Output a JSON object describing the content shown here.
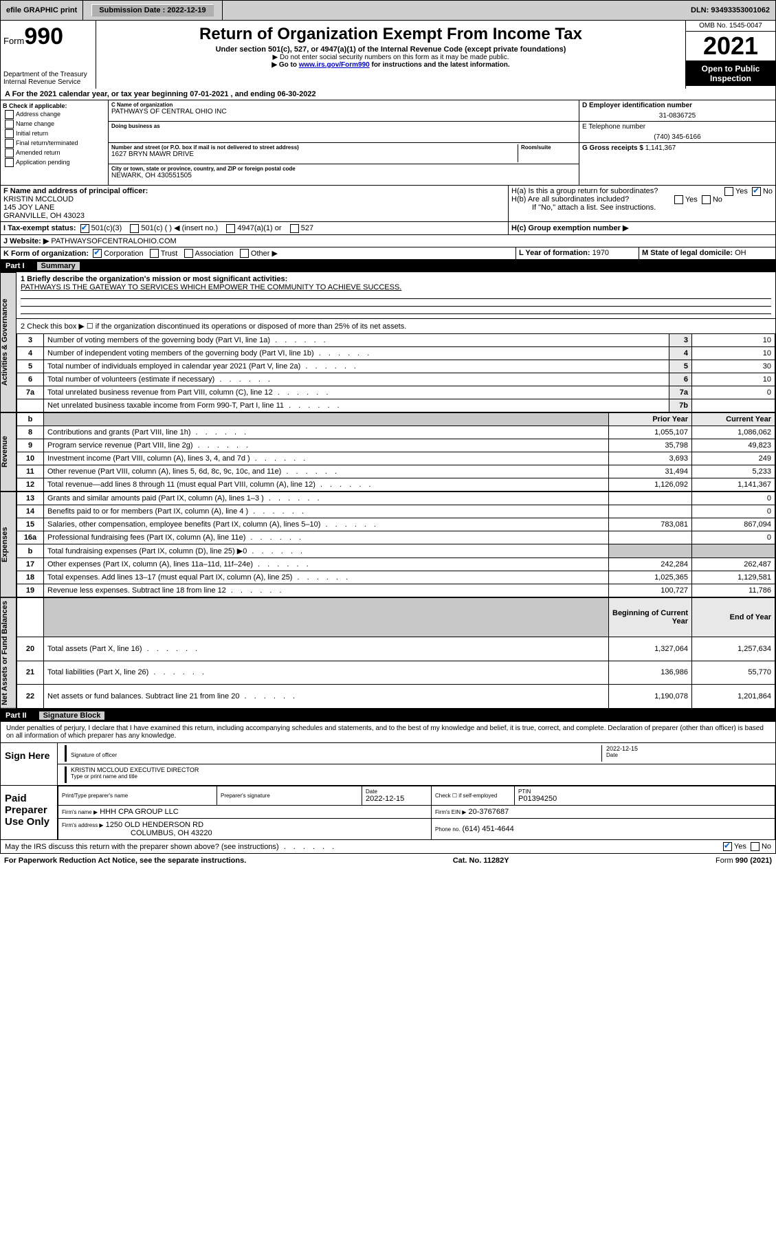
{
  "topbar": {
    "efile": "efile GRAPHIC print",
    "submission_label": "Submission Date : 2022-12-19",
    "dln": "DLN: 93493353001062"
  },
  "header": {
    "form_prefix": "Form",
    "form_number": "990",
    "dept": "Department of the Treasury",
    "irs": "Internal Revenue Service",
    "title": "Return of Organization Exempt From Income Tax",
    "subtitle": "Under section 501(c), 527, or 4947(a)(1) of the Internal Revenue Code (except private foundations)",
    "note1": "▶ Do not enter social security numbers on this form as it may be made public.",
    "note2_pre": "▶ Go to ",
    "note2_link": "www.irs.gov/Form990",
    "note2_post": " for instructions and the latest information.",
    "omb": "OMB No. 1545-0047",
    "year": "2021",
    "inspect": "Open to Public Inspection"
  },
  "period": "A For the 2021 calendar year, or tax year beginning 07-01-2021   , and ending 06-30-2022",
  "B": {
    "label": "B Check if applicable:",
    "items": [
      "Address change",
      "Name change",
      "Initial return",
      "Final return/terminated",
      "Amended return",
      "Application pending"
    ]
  },
  "C": {
    "name_lab": "C Name of organization",
    "name": "PATHWAYS OF CENTRAL OHIO INC",
    "dba_lab": "Doing business as",
    "addr_lab": "Number and street (or P.O. box if mail is not delivered to street address)",
    "room_lab": "Room/suite",
    "addr": "1627 BRYN MAWR DRIVE",
    "city_lab": "City or town, state or province, country, and ZIP or foreign postal code",
    "city": "NEWARK, OH  430551505"
  },
  "D": {
    "lab": "D Employer identification number",
    "val": "31-0836725"
  },
  "E": {
    "lab": "E Telephone number",
    "val": "(740) 345-6166"
  },
  "G": {
    "lab": "G Gross receipts $",
    "val": "1,141,367"
  },
  "F": {
    "lab": "F Name and address of principal officer:",
    "name": "KRISTIN MCCLOUD",
    "addr1": "145 JOY LANE",
    "addr2": "GRANVILLE, OH  43023"
  },
  "H": {
    "a": "H(a)  Is this a group return for subordinates?",
    "b": "H(b)  Are all subordinates included?",
    "b_note": "If \"No,\" attach a list. See instructions.",
    "c": "H(c)  Group exemption number ▶",
    "yes": "Yes",
    "no": "No"
  },
  "I": {
    "lab": "I  Tax-exempt status:",
    "opts": [
      "501(c)(3)",
      "501(c) (  ) ◀ (insert no.)",
      "4947(a)(1) or",
      "527"
    ]
  },
  "J": {
    "lab": "J  Website: ▶",
    "val": "PATHWAYSOFCENTRALOHIO.COM"
  },
  "K": {
    "lab": "K Form of organization:",
    "opts": [
      "Corporation",
      "Trust",
      "Association",
      "Other ▶"
    ]
  },
  "L": {
    "lab": "L Year of formation:",
    "val": "1970"
  },
  "M": {
    "lab": "M State of legal domicile:",
    "val": "OH"
  },
  "part1_hdr": {
    "pt": "Part I",
    "ti": "Summary"
  },
  "summary": {
    "line1_lab": "1  Briefly describe the organization's mission or most significant activities:",
    "line1_val": "PATHWAYS IS THE GATEWAY TO SERVICES WHICH EMPOWER THE COMMUNITY TO ACHIEVE SUCCESS.",
    "line2": "2   Check this box ▶ ☐  if the organization discontinued its operations or disposed of more than 25% of its net assets.",
    "rows_gov": [
      {
        "n": "3",
        "d": "Number of voting members of the governing body (Part VI, line 1a)",
        "box": "3",
        "v": "10"
      },
      {
        "n": "4",
        "d": "Number of independent voting members of the governing body (Part VI, line 1b)",
        "box": "4",
        "v": "10"
      },
      {
        "n": "5",
        "d": "Total number of individuals employed in calendar year 2021 (Part V, line 2a)",
        "box": "5",
        "v": "30"
      },
      {
        "n": "6",
        "d": "Total number of volunteers (estimate if necessary)",
        "box": "6",
        "v": "10"
      },
      {
        "n": "7a",
        "d": "Total unrelated business revenue from Part VIII, column (C), line 12",
        "box": "7a",
        "v": "0"
      },
      {
        "n": "",
        "d": "Net unrelated business taxable income from Form 990-T, Part I, line 11",
        "box": "7b",
        "v": ""
      }
    ],
    "col_prior": "Prior Year",
    "col_curr": "Current Year",
    "rev": [
      {
        "n": "8",
        "d": "Contributions and grants (Part VIII, line 1h)",
        "p": "1,055,107",
        "c": "1,086,062"
      },
      {
        "n": "9",
        "d": "Program service revenue (Part VIII, line 2g)",
        "p": "35,798",
        "c": "49,823"
      },
      {
        "n": "10",
        "d": "Investment income (Part VIII, column (A), lines 3, 4, and 7d )",
        "p": "3,693",
        "c": "249"
      },
      {
        "n": "11",
        "d": "Other revenue (Part VIII, column (A), lines 5, 6d, 8c, 9c, 10c, and 11e)",
        "p": "31,494",
        "c": "5,233"
      },
      {
        "n": "12",
        "d": "Total revenue—add lines 8 through 11 (must equal Part VIII, column (A), line 12)",
        "p": "1,126,092",
        "c": "1,141,367"
      }
    ],
    "exp": [
      {
        "n": "13",
        "d": "Grants and similar amounts paid (Part IX, column (A), lines 1–3 )",
        "p": "",
        "c": "0"
      },
      {
        "n": "14",
        "d": "Benefits paid to or for members (Part IX, column (A), line 4 )",
        "p": "",
        "c": "0"
      },
      {
        "n": "15",
        "d": "Salaries, other compensation, employee benefits (Part IX, column (A), lines 5–10)",
        "p": "783,081",
        "c": "867,094"
      },
      {
        "n": "16a",
        "d": "Professional fundraising fees (Part IX, column (A), line 11e)",
        "p": "",
        "c": "0"
      },
      {
        "n": "b",
        "d": "Total fundraising expenses (Part IX, column (D), line 25) ▶0",
        "p": "shaded",
        "c": "shaded"
      },
      {
        "n": "17",
        "d": "Other expenses (Part IX, column (A), lines 11a–11d, 11f–24e)",
        "p": "242,284",
        "c": "262,487"
      },
      {
        "n": "18",
        "d": "Total expenses. Add lines 13–17 (must equal Part IX, column (A), line 25)",
        "p": "1,025,365",
        "c": "1,129,581"
      },
      {
        "n": "19",
        "d": "Revenue less expenses. Subtract line 18 from line 12",
        "p": "100,727",
        "c": "11,786"
      }
    ],
    "col_beg": "Beginning of Current Year",
    "col_end": "End of Year",
    "net": [
      {
        "n": "20",
        "d": "Total assets (Part X, line 16)",
        "p": "1,327,064",
        "c": "1,257,634"
      },
      {
        "n": "21",
        "d": "Total liabilities (Part X, line 26)",
        "p": "136,986",
        "c": "55,770"
      },
      {
        "n": "22",
        "d": "Net assets or fund balances. Subtract line 21 from line 20",
        "p": "1,190,078",
        "c": "1,201,864"
      }
    ],
    "side_gov": "Activities & Governance",
    "side_rev": "Revenue",
    "side_exp": "Expenses",
    "side_net": "Net Assets or Fund Balances"
  },
  "part2_hdr": {
    "pt": "Part II",
    "ti": "Signature Block"
  },
  "sig": {
    "declare": "Under penalties of perjury, I declare that I have examined this return, including accompanying schedules and statements, and to the best of my knowledge and belief, it is true, correct, and complete. Declaration of preparer (other than officer) is based on all information of which preparer has any knowledge.",
    "sign_here": "Sign Here",
    "sig_officer_lab": "Signature of officer",
    "sig_date": "2022-12-15",
    "date_lab": "Date",
    "officer_name": "KRISTIN MCCLOUD  EXECUTIVE DIRECTOR",
    "officer_name_lab": "Type or print name and title",
    "paid": "Paid Preparer Use Only",
    "prep_name_lab": "Print/Type preparer's name",
    "prep_sig_lab": "Preparer's signature",
    "prep_date_lab": "Date",
    "prep_date": "2022-12-15",
    "self_lab": "Check ☐ if self‑employed",
    "ptin_lab": "PTIN",
    "ptin": "P01394250",
    "firm_name_lab": "Firm's name    ▶",
    "firm_name": "HHH CPA GROUP LLC",
    "firm_ein_lab": "Firm's EIN ▶",
    "firm_ein": "20-3767687",
    "firm_addr_lab": "Firm's address ▶",
    "firm_addr1": "1250 OLD HENDERSON RD",
    "firm_addr2": "COLUMBUS, OH  43220",
    "phone_lab": "Phone no.",
    "phone": "(614) 451-4644",
    "discuss": "May the IRS discuss this return with the preparer shown above? (see instructions)"
  },
  "footer": {
    "left": "For Paperwork Reduction Act Notice, see the separate instructions.",
    "mid": "Cat. No. 11282Y",
    "right": "Form 990 (2021)"
  }
}
